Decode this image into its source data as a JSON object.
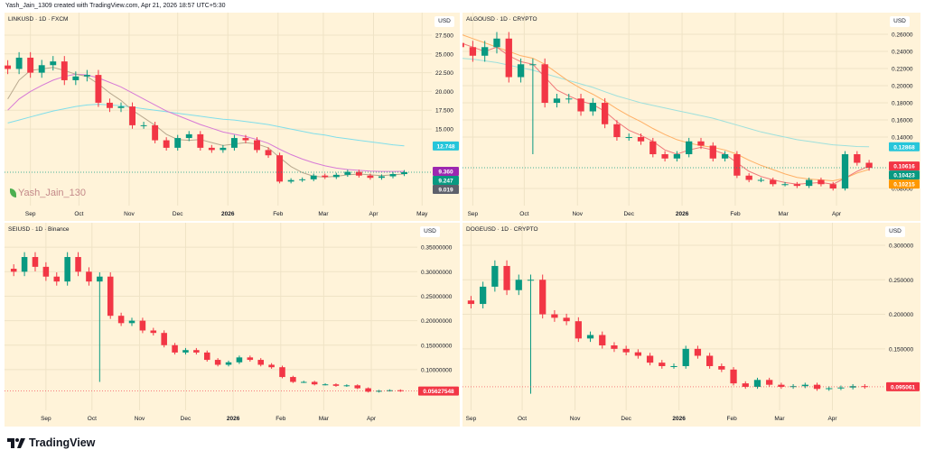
{
  "header": {
    "text": "Yash_Jain_1309 created with TradingView.com, Apr 21, 2026 18:57 UTC+5:30"
  },
  "watermark": {
    "text": "Yash_Jain_130"
  },
  "logo": {
    "text": "TradingView"
  },
  "colors": {
    "background": "#fff3d9",
    "up": "#089981",
    "down": "#f23645",
    "grid": "#efe3c6"
  },
  "chart_data": [
    {
      "type": "candlestick",
      "title": "LINKUSD · 1D · FXCM",
      "currency": "USD",
      "xlim": [
        "2025-08-16",
        "2026-05-07"
      ],
      "ylim": [
        4.8,
        30.5
      ],
      "grid": true,
      "yticks": [
        {
          "v": 27.5,
          "label": "27.500"
        },
        {
          "v": 25,
          "label": "25.000"
        },
        {
          "v": 22.5,
          "label": "22.500"
        },
        {
          "v": 20,
          "label": "20.000"
        },
        {
          "v": 17.5,
          "label": "17.500"
        },
        {
          "v": 15,
          "label": "15.000"
        }
      ],
      "xticks": [
        {
          "date": "2025-09-01",
          "label": "Sep"
        },
        {
          "date": "2025-10-01",
          "label": "Oct"
        },
        {
          "date": "2025-11-01",
          "label": "Nov"
        },
        {
          "date": "2025-12-01",
          "label": "Dec"
        },
        {
          "date": "2026-01-01",
          "label": "2026"
        },
        {
          "date": "2026-02-01",
          "label": "Feb"
        },
        {
          "date": "2026-03-01",
          "label": "Mar"
        },
        {
          "date": "2026-04-01",
          "label": "Apr"
        },
        {
          "date": "2026-05-01",
          "label": "May"
        }
      ],
      "x": [
        "2025-08-18",
        "2025-08-25",
        "2025-09-01",
        "2025-09-08",
        "2025-09-15",
        "2025-09-22",
        "2025-09-29",
        "2025-10-06",
        "2025-10-13",
        "2025-10-20",
        "2025-10-27",
        "2025-11-03",
        "2025-11-10",
        "2025-11-17",
        "2025-11-24",
        "2025-12-01",
        "2025-12-08",
        "2025-12-15",
        "2025-12-22",
        "2025-12-29",
        "2026-01-05",
        "2026-01-12",
        "2026-01-19",
        "2026-01-26",
        "2026-02-02",
        "2026-02-09",
        "2026-02-16",
        "2026-02-23",
        "2026-03-02",
        "2026-03-09",
        "2026-03-16",
        "2026-03-23",
        "2026-03-30",
        "2026-04-06",
        "2026-04-13",
        "2026-04-20"
      ],
      "close": [
        23,
        24.5,
        22.5,
        23.5,
        24,
        21.5,
        22,
        22.2,
        18.5,
        17.8,
        18,
        15.5,
        15.5,
        13.5,
        12.5,
        13.8,
        14.3,
        12.5,
        12.2,
        12.5,
        13.8,
        13.5,
        12.2,
        11.5,
        8.0,
        8.2,
        8.3,
        8.8,
        8.6,
        8.9,
        9.3,
        8.8,
        8.5,
        8.7,
        9.0,
        9.25
      ],
      "lines": [
        {
          "color": "#80deea",
          "values": [
            15.8,
            16.2,
            16.6,
            17.0,
            17.4,
            17.7,
            18.0,
            18.2,
            18.3,
            18.2,
            18.1,
            17.9,
            17.7,
            17.5,
            17.3,
            17.1,
            16.9,
            16.7,
            16.5,
            16.3,
            16.2,
            16.0,
            15.8,
            15.6,
            15.3,
            15.0,
            14.7,
            14.4,
            14.2,
            13.9,
            13.7,
            13.5,
            13.3,
            13.1,
            12.9,
            12.75
          ]
        },
        {
          "color": "#d77ad6",
          "values": [
            17.5,
            19,
            20,
            20.8,
            21.5,
            22,
            22.3,
            22.2,
            21.8,
            21.2,
            20.6,
            19.8,
            19,
            18.2,
            17.4,
            16.8,
            16.2,
            15.6,
            15.1,
            14.6,
            14.3,
            14.0,
            13.6,
            13.1,
            12.3,
            11.6,
            11.0,
            10.5,
            10.1,
            9.8,
            9.6,
            9.5,
            9.4,
            9.35,
            9.35,
            9.36
          ]
        },
        {
          "color": "#b8a88e",
          "values": [
            19,
            21.5,
            22.8,
            23,
            23.2,
            22.8,
            22.3,
            22,
            21,
            19.8,
            18.8,
            17.5,
            16.5,
            15.5,
            14.3,
            13.6,
            13.5,
            13.6,
            13.2,
            12.8,
            13,
            13.2,
            13,
            12.5,
            11.2,
            10,
            9.2,
            8.7,
            8.6,
            8.7,
            8.9,
            9.0,
            8.9,
            8.8,
            8.9,
            9.02
          ]
        }
      ],
      "last_price": 9.247,
      "badges": [
        {
          "value": 12.748,
          "label": "12.748",
          "color": "#26c6da"
        },
        {
          "value": 9.36,
          "label": "9.360",
          "color": "#9c27b0"
        },
        {
          "value": 9.247,
          "label": "9.247",
          "color": "#089981"
        },
        {
          "value": 9.019,
          "label": "9.019",
          "color": "#5d606b"
        }
      ]
    },
    {
      "type": "candlestick",
      "title": "ALGOUSD · 1D · CRYPTO",
      "currency": "USD",
      "xlim": [
        "2025-08-26",
        "2026-05-01"
      ],
      "ylim": [
        0.06,
        0.2853
      ],
      "grid": true,
      "yticks": [
        {
          "v": 0.26,
          "label": "0.26000"
        },
        {
          "v": 0.24,
          "label": "0.24000"
        },
        {
          "v": 0.22,
          "label": "0.22000"
        },
        {
          "v": 0.2,
          "label": "0.20000"
        },
        {
          "v": 0.18,
          "label": "0.18000"
        },
        {
          "v": 0.16,
          "label": "0.16000"
        },
        {
          "v": 0.14,
          "label": "0.14000"
        },
        {
          "v": 0.08,
          "label": "0.08000"
        }
      ],
      "xticks": [
        {
          "date": "2025-09-01",
          "label": "Sep"
        },
        {
          "date": "2025-10-01",
          "label": "Oct"
        },
        {
          "date": "2025-11-01",
          "label": "Nov"
        },
        {
          "date": "2025-12-01",
          "label": "Dec"
        },
        {
          "date": "2026-01-01",
          "label": "2026"
        },
        {
          "date": "2026-02-01",
          "label": "Feb"
        },
        {
          "date": "2026-03-01",
          "label": "Mar"
        },
        {
          "date": "2026-04-01",
          "label": "Apr"
        }
      ],
      "x": [
        "2025-08-25",
        "2025-09-01",
        "2025-09-08",
        "2025-09-15",
        "2025-09-22",
        "2025-09-29",
        "2025-10-06",
        "2025-10-13",
        "2025-10-20",
        "2025-10-27",
        "2025-11-03",
        "2025-11-10",
        "2025-11-17",
        "2025-11-24",
        "2025-12-01",
        "2025-12-08",
        "2025-12-15",
        "2025-12-22",
        "2025-12-29",
        "2026-01-05",
        "2026-01-12",
        "2026-01-19",
        "2026-01-26",
        "2026-02-02",
        "2026-02-09",
        "2026-02-16",
        "2026-02-23",
        "2026-03-02",
        "2026-03-09",
        "2026-03-16",
        "2026-03-23",
        "2026-03-30",
        "2026-04-06",
        "2026-04-13",
        "2026-04-20"
      ],
      "close": [
        0.245,
        0.235,
        0.245,
        0.255,
        0.21,
        0.225,
        0.225,
        0.18,
        0.185,
        0.185,
        0.17,
        0.18,
        0.155,
        0.14,
        0.14,
        0.135,
        0.12,
        0.115,
        0.12,
        0.135,
        0.13,
        0.115,
        0.12,
        0.095,
        0.09,
        0.09,
        0.085,
        0.085,
        0.083,
        0.09,
        0.085,
        0.08,
        0.12,
        0.11,
        0.104
      ],
      "wick": {
        "date": "2025-10-06",
        "low": 0.12
      },
      "lines": [
        {
          "color": "#9ee0dc",
          "values": [
            0.232,
            0.231,
            0.229,
            0.227,
            0.224,
            0.221,
            0.218,
            0.214,
            0.21,
            0.206,
            0.202,
            0.198,
            0.193,
            0.188,
            0.184,
            0.18,
            0.177,
            0.174,
            0.171,
            0.168,
            0.165,
            0.162,
            0.158,
            0.154,
            0.15,
            0.146,
            0.143,
            0.14,
            0.137,
            0.135,
            0.133,
            0.131,
            0.13,
            0.129,
            0.1287
          ]
        },
        {
          "color": "#ffb066",
          "values": [
            0.26,
            0.255,
            0.25,
            0.245,
            0.24,
            0.235,
            0.232,
            0.225,
            0.215,
            0.205,
            0.197,
            0.19,
            0.182,
            0.173,
            0.165,
            0.158,
            0.15,
            0.143,
            0.137,
            0.133,
            0.13,
            0.128,
            0.125,
            0.12,
            0.113,
            0.107,
            0.102,
            0.097,
            0.093,
            0.091,
            0.09,
            0.089,
            0.092,
            0.098,
            0.1022
          ]
        },
        {
          "color": "#f0787a",
          "values": [
            0.25,
            0.245,
            0.24,
            0.245,
            0.235,
            0.228,
            0.225,
            0.21,
            0.195,
            0.188,
            0.182,
            0.178,
            0.17,
            0.158,
            0.148,
            0.142,
            0.135,
            0.125,
            0.12,
            0.125,
            0.128,
            0.125,
            0.12,
            0.11,
            0.1,
            0.094,
            0.09,
            0.087,
            0.085,
            0.086,
            0.087,
            0.085,
            0.092,
            0.1,
            0.1062
          ]
        }
      ],
      "last_price": 0.10423,
      "badges": [
        {
          "value": 0.12868,
          "label": "0.12868",
          "color": "#26c6da"
        },
        {
          "value": 0.10616,
          "label": "0.10616",
          "color": "#f23645"
        },
        {
          "value": 0.10423,
          "label": "0.10423",
          "color": "#089981"
        },
        {
          "value": 0.10215,
          "label": "0.10215",
          "color": "#ff9800"
        }
      ]
    },
    {
      "type": "candlestick",
      "title": "SEIUSD · 1D · Binance",
      "currency": "USD",
      "xlim": [
        "2025-08-05",
        "2026-05-01"
      ],
      "ylim": [
        0.017,
        0.4
      ],
      "grid": true,
      "yticks": [
        {
          "v": 0.35,
          "label": "0.35000000"
        },
        {
          "v": 0.3,
          "label": "0.30000000"
        },
        {
          "v": 0.25,
          "label": "0.25000000"
        },
        {
          "v": 0.2,
          "label": "0.20000000"
        },
        {
          "v": 0.15,
          "label": "0.15000000"
        },
        {
          "v": 0.1,
          "label": "0.10000000"
        }
      ],
      "xticks": [
        {
          "date": "2025-09-01",
          "label": "Sep"
        },
        {
          "date": "2025-10-01",
          "label": "Oct"
        },
        {
          "date": "2025-11-01",
          "label": "Nov"
        },
        {
          "date": "2025-12-01",
          "label": "Dec"
        },
        {
          "date": "2026-01-01",
          "label": "2026"
        },
        {
          "date": "2026-02-01",
          "label": "Feb"
        },
        {
          "date": "2026-03-01",
          "label": "Mar"
        },
        {
          "date": "2026-04-01",
          "label": "Apr"
        }
      ],
      "x": [
        "2025-08-11",
        "2025-08-18",
        "2025-08-25",
        "2025-09-01",
        "2025-09-08",
        "2025-09-15",
        "2025-09-22",
        "2025-09-29",
        "2025-10-06",
        "2025-10-13",
        "2025-10-20",
        "2025-10-27",
        "2025-11-03",
        "2025-11-10",
        "2025-11-17",
        "2025-11-24",
        "2025-12-01",
        "2025-12-08",
        "2025-12-15",
        "2025-12-22",
        "2025-12-29",
        "2026-01-05",
        "2026-01-12",
        "2026-01-19",
        "2026-01-26",
        "2026-02-02",
        "2026-02-09",
        "2026-02-16",
        "2026-02-23",
        "2026-03-02",
        "2026-03-09",
        "2026-03-16",
        "2026-03-23",
        "2026-03-30",
        "2026-04-06",
        "2026-04-13",
        "2026-04-20"
      ],
      "close": [
        0.3,
        0.33,
        0.31,
        0.29,
        0.28,
        0.33,
        0.3,
        0.28,
        0.29,
        0.21,
        0.195,
        0.2,
        0.18,
        0.175,
        0.15,
        0.135,
        0.14,
        0.135,
        0.12,
        0.11,
        0.115,
        0.125,
        0.12,
        0.11,
        0.105,
        0.085,
        0.075,
        0.075,
        0.07,
        0.07,
        0.067,
        0.068,
        0.062,
        0.055,
        0.057,
        0.058,
        0.0563
      ],
      "wick": {
        "date": "2025-10-06",
        "low": 0.075
      },
      "lines": [],
      "last_price": 0.05627548,
      "badges": [
        {
          "value": 0.05627548,
          "label": "0.05627548",
          "color": "#f23645"
        }
      ]
    },
    {
      "type": "candlestick",
      "title": "DOGEUSD · 1D · CRYPTO",
      "currency": "USD",
      "xlim": [
        "2025-08-27",
        "2026-05-02"
      ],
      "ylim": [
        0.061,
        0.3326
      ],
      "grid": true,
      "yticks": [
        {
          "v": 0.3,
          "label": "0.300000"
        },
        {
          "v": 0.25,
          "label": "0.250000"
        },
        {
          "v": 0.2,
          "label": "0.200000"
        },
        {
          "v": 0.15,
          "label": "0.150000"
        }
      ],
      "xticks": [
        {
          "date": "2025-09-01",
          "label": "Sep"
        },
        {
          "date": "2025-10-01",
          "label": "Oct"
        },
        {
          "date": "2025-11-01",
          "label": "Nov"
        },
        {
          "date": "2025-12-01",
          "label": "Dec"
        },
        {
          "date": "2026-01-01",
          "label": "2026"
        },
        {
          "date": "2026-02-01",
          "label": "Feb"
        },
        {
          "date": "2026-03-01",
          "label": "Mar"
        },
        {
          "date": "2026-04-01",
          "label": "Apr"
        }
      ],
      "x": [
        "2025-08-25",
        "2025-09-01",
        "2025-09-08",
        "2025-09-15",
        "2025-09-22",
        "2025-09-29",
        "2025-10-06",
        "2025-10-13",
        "2025-10-20",
        "2025-10-27",
        "2025-11-03",
        "2025-11-10",
        "2025-11-17",
        "2025-11-24",
        "2025-12-01",
        "2025-12-08",
        "2025-12-15",
        "2025-12-22",
        "2025-12-29",
        "2026-01-05",
        "2026-01-12",
        "2026-01-19",
        "2026-01-26",
        "2026-02-02",
        "2026-02-09",
        "2026-02-16",
        "2026-02-23",
        "2026-03-02",
        "2026-03-09",
        "2026-03-16",
        "2026-03-23",
        "2026-03-30",
        "2026-04-06",
        "2026-04-13",
        "2026-04-20"
      ],
      "close": [
        0.22,
        0.215,
        0.24,
        0.27,
        0.235,
        0.25,
        0.25,
        0.2,
        0.195,
        0.19,
        0.165,
        0.17,
        0.155,
        0.15,
        0.145,
        0.14,
        0.13,
        0.125,
        0.125,
        0.15,
        0.14,
        0.125,
        0.12,
        0.1,
        0.095,
        0.105,
        0.098,
        0.095,
        0.096,
        0.098,
        0.092,
        0.093,
        0.094,
        0.096,
        0.0951
      ],
      "wick": {
        "date": "2025-10-06",
        "low": 0.085
      },
      "lines": [],
      "last_price": 0.095061,
      "badges": [
        {
          "value": 0.095061,
          "label": "0.095061",
          "color": "#f23645"
        }
      ]
    }
  ]
}
